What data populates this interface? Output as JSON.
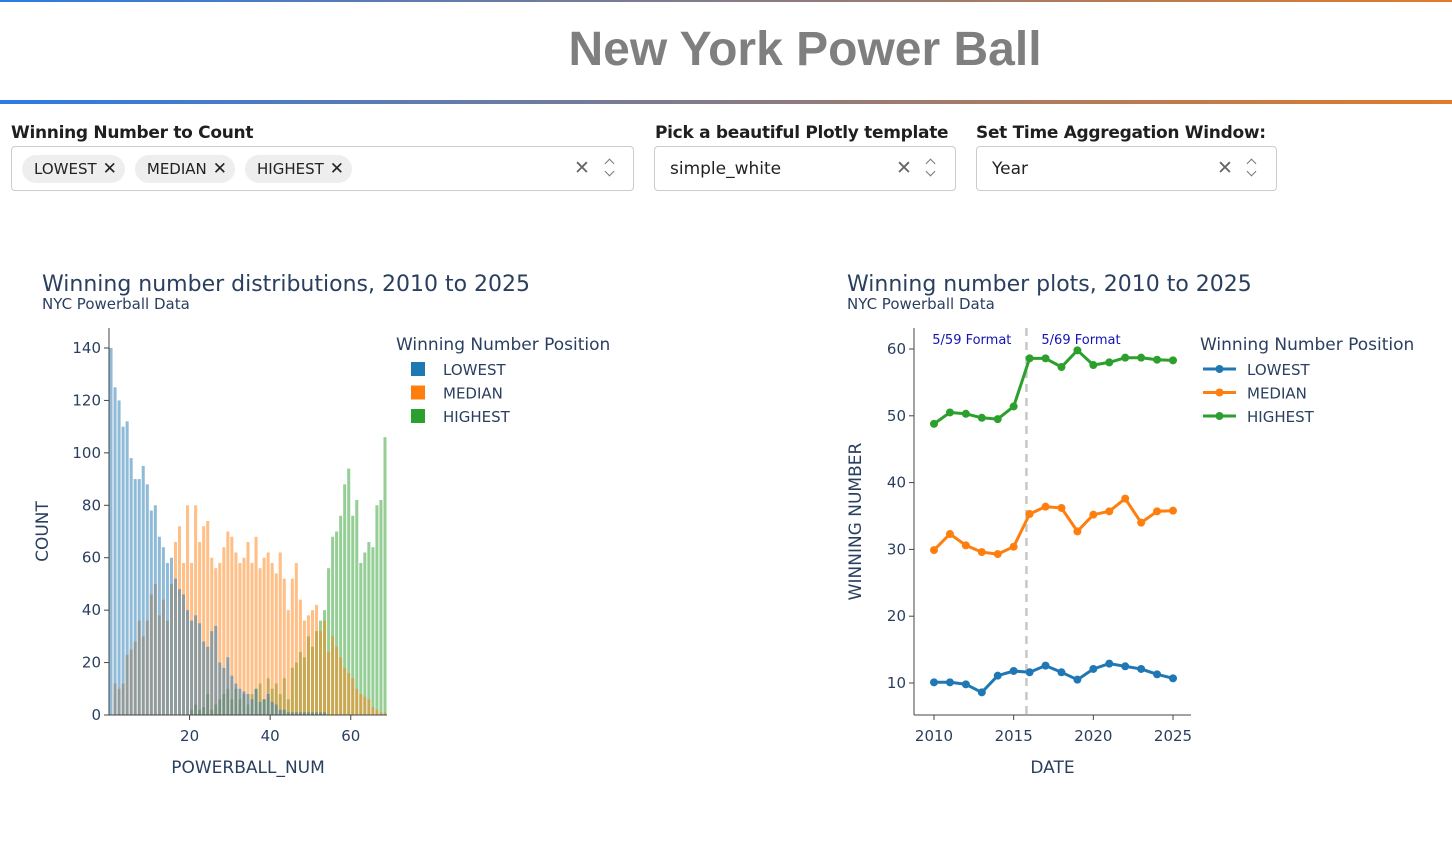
{
  "header": {
    "title": "New York Power Ball"
  },
  "controls": {
    "count": {
      "label": "Winning Number to Count",
      "chips": [
        "LOWEST",
        "MEDIAN",
        "HIGHEST"
      ]
    },
    "template": {
      "label": "Pick a beautiful Plotly template",
      "value": "simple_white"
    },
    "window": {
      "label": "Set Time Aggregation Window:",
      "value": "Year"
    },
    "clear_glyph": "✕",
    "chip_remove_glyph": "✕"
  },
  "colors": {
    "lowest": "#1f77b4",
    "median": "#ff7f0e",
    "highest": "#2ca02c"
  },
  "chart_data": [
    {
      "type": "bar",
      "title": "Winning number distributions, 2010 to 2025",
      "subtitle": "NYC Powerball Data",
      "xlabel": "POWERBALL_NUM",
      "ylabel": "COUNT",
      "xlim": [
        0,
        69
      ],
      "ylim": [
        0,
        140
      ],
      "xticks": [
        20,
        40,
        60
      ],
      "yticks": [
        0,
        20,
        40,
        60,
        80,
        100,
        120,
        140
      ],
      "legend_title": "Winning Number Position",
      "legend_position": "right",
      "barmode": "overlay",
      "categories": [
        1,
        2,
        3,
        4,
        5,
        6,
        7,
        8,
        9,
        10,
        11,
        12,
        13,
        14,
        15,
        16,
        17,
        18,
        19,
        20,
        21,
        22,
        23,
        24,
        25,
        26,
        27,
        28,
        29,
        30,
        31,
        32,
        33,
        34,
        35,
        36,
        37,
        38,
        39,
        40,
        41,
        42,
        43,
        44,
        45,
        46,
        47,
        48,
        49,
        50,
        51,
        52,
        53,
        54,
        55,
        56,
        57,
        58,
        59,
        60,
        61,
        62,
        63,
        64,
        65,
        66,
        67,
        68,
        69
      ],
      "series": [
        {
          "name": "LOWEST",
          "values": [
            140,
            125,
            120,
            110,
            112,
            98,
            90,
            90,
            95,
            88,
            78,
            80,
            68,
            64,
            58,
            60,
            52,
            48,
            46,
            40,
            36,
            38,
            35,
            28,
            26,
            32,
            34,
            20,
            18,
            22,
            15,
            12,
            10,
            9,
            8,
            6,
            10,
            5,
            6,
            8,
            5,
            4,
            2,
            2,
            1,
            1,
            1,
            1,
            1,
            1,
            1,
            1,
            1,
            1,
            0,
            0,
            0,
            0,
            0,
            0,
            0,
            0,
            0,
            0,
            0,
            0,
            0,
            0,
            0
          ]
        },
        {
          "name": "MEDIAN",
          "values": [
            0,
            12,
            10,
            12,
            23,
            25,
            28,
            36,
            30,
            36,
            46,
            50,
            38,
            44,
            36,
            50,
            66,
            72,
            58,
            80,
            58,
            80,
            66,
            72,
            74,
            60,
            56,
            58,
            64,
            70,
            68,
            62,
            58,
            60,
            66,
            58,
            68,
            56,
            60,
            62,
            58,
            54,
            62,
            52,
            40,
            52,
            58,
            44,
            36,
            38,
            40,
            42,
            32,
            36,
            24,
            30,
            26,
            22,
            18,
            16,
            14,
            10,
            8,
            7,
            6,
            3,
            2,
            1,
            1
          ]
        },
        {
          "name": "HIGHEST",
          "values": [
            0,
            0,
            0,
            0,
            0,
            0,
            0,
            0,
            0,
            0,
            0,
            0,
            0,
            0,
            0,
            0,
            0,
            0,
            0,
            0,
            2,
            4,
            2,
            3,
            8,
            2,
            4,
            6,
            8,
            10,
            6,
            10,
            6,
            8,
            4,
            8,
            10,
            12,
            6,
            14,
            10,
            12,
            8,
            14,
            6,
            18,
            20,
            24,
            22,
            30,
            26,
            32,
            36,
            40,
            56,
            68,
            70,
            76,
            88,
            94,
            76,
            82,
            58,
            62,
            66,
            64,
            80,
            82,
            106
          ]
        }
      ]
    },
    {
      "type": "line",
      "title": "Winning number plots, 2010 to 2025",
      "subtitle": "NYC Powerball Data",
      "xlabel": "DATE",
      "ylabel": "WINNING NUMBER",
      "xlim": [
        2010,
        2025
      ],
      "ylim": [
        5,
        62
      ],
      "xticks": [
        2010,
        2015,
        2020,
        2025
      ],
      "yticks": [
        10,
        20,
        30,
        40,
        50,
        60
      ],
      "legend_title": "Winning Number Position",
      "legend_position": "right",
      "x": [
        2010,
        2011,
        2012,
        2013,
        2014,
        2015,
        2016,
        2017,
        2018,
        2019,
        2020,
        2021,
        2022,
        2023,
        2024,
        2025
      ],
      "series": [
        {
          "name": "LOWEST",
          "values": [
            10.1,
            10.1,
            9.8,
            8.6,
            11.1,
            11.8,
            11.6,
            12.6,
            11.6,
            10.5,
            12.1,
            12.9,
            12.5,
            12.1,
            11.3,
            10.7
          ]
        },
        {
          "name": "MEDIAN",
          "values": [
            29.9,
            32.3,
            30.6,
            29.6,
            29.3,
            30.4,
            35.3,
            36.4,
            36.2,
            32.7,
            35.2,
            35.7,
            37.6,
            34.0,
            35.7,
            35.8
          ]
        },
        {
          "name": "HIGHEST",
          "values": [
            48.8,
            50.5,
            50.3,
            49.7,
            49.5,
            51.4,
            58.6,
            58.6,
            57.3,
            59.8,
            57.6,
            58.0,
            58.7,
            58.7,
            58.4,
            58.3
          ]
        }
      ],
      "annotations": [
        {
          "text": "5/59 Format"
        },
        {
          "text": "5/69 Format"
        }
      ],
      "vline_x": 2015.8
    }
  ]
}
